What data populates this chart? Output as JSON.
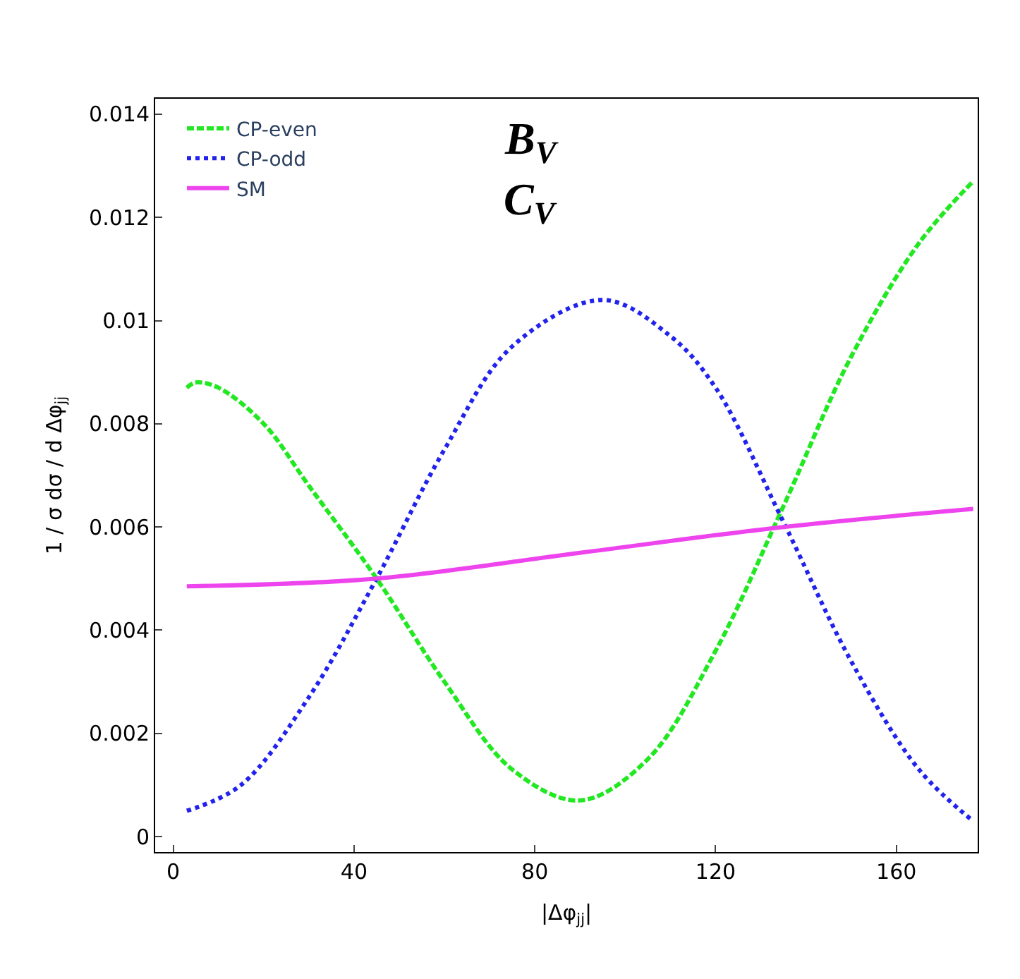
{
  "chart_data": {
    "type": "line",
    "xlabel": "|Δφ$_{jj}$|",
    "ylabel": "1 / σ dσ / d Δφ$_{jj}$",
    "xlim": [
      -4,
      178
    ],
    "ylim": [
      -0.0003,
      0.0143
    ],
    "xticks": [
      0,
      40,
      80,
      120,
      160
    ],
    "yticks": [
      0,
      0.002,
      0.004,
      0.006,
      0.008,
      0.01,
      0.012,
      0.014
    ],
    "legend": "top left",
    "marker": "none",
    "series": [
      {
        "name": "CP-even",
        "color": "#22e822",
        "line_style": "dashed",
        "x": [
          3,
          5,
          10,
          20,
          30,
          45,
          60,
          75,
          90,
          105,
          120,
          135,
          150,
          165,
          177
        ],
        "values": [
          0.0087,
          0.0088,
          0.0087,
          0.008,
          0.0068,
          0.005,
          0.003,
          0.0013,
          0.0007,
          0.0015,
          0.0036,
          0.0064,
          0.0093,
          0.0115,
          0.0127
        ]
      },
      {
        "name": "CP-odd",
        "color": "#2222ee",
        "line_style": "dotted",
        "x": [
          3,
          15,
          30,
          45,
          60,
          75,
          95,
          110,
          120,
          135,
          150,
          165,
          177
        ],
        "values": [
          0.0005,
          0.001,
          0.0027,
          0.005,
          0.0075,
          0.0095,
          0.0104,
          0.0097,
          0.0087,
          0.0061,
          0.0034,
          0.0013,
          0.0003
        ]
      },
      {
        "name": "SM",
        "color": "#ee44ee",
        "line_style": "solid",
        "x": [
          3,
          45,
          90,
          135,
          177
        ],
        "values": [
          0.00485,
          0.005,
          0.0055,
          0.006,
          0.00635
        ]
      }
    ],
    "annotations": [
      "B$_{V}$",
      "C$_{V}$"
    ]
  }
}
